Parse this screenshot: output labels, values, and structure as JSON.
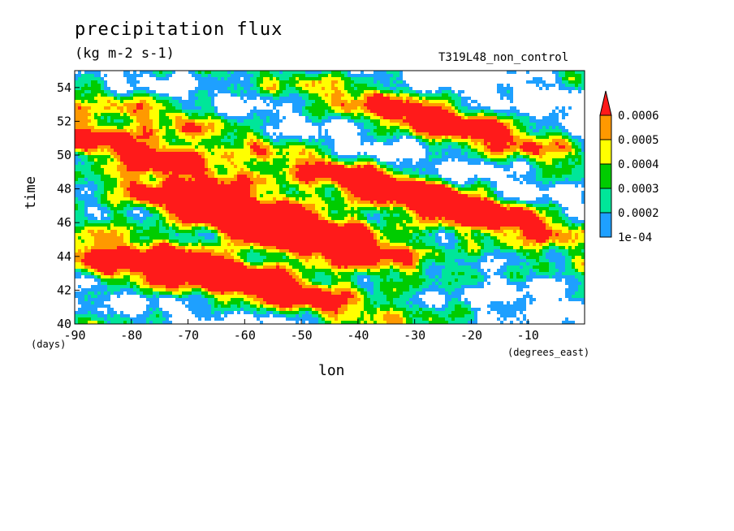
{
  "title": "precipitation flux",
  "units": "(kg m-2 s-1)",
  "run_label": "T319L48_non_control",
  "chart_data": {
    "type": "heatmap",
    "title": "precipitation flux",
    "xlabel": "lon",
    "ylabel": "time",
    "x_unit": "(degrees_east)",
    "y_unit": "(days)",
    "xlim": [
      -90,
      0
    ],
    "ylim": [
      40,
      55
    ],
    "x_ticks": [
      -90,
      -80,
      -70,
      -60,
      -50,
      -40,
      -30,
      -20,
      -10
    ],
    "x_tick_labels": [
      "-90",
      "-80",
      "-70",
      "-60",
      "-50",
      "-40",
      "-30",
      "-20",
      "-10"
    ],
    "y_ticks": [
      40,
      42,
      44,
      46,
      48,
      50,
      52,
      54
    ],
    "y_tick_labels": [
      "40",
      "42",
      "44",
      "46",
      "48",
      "50",
      "52",
      "54"
    ],
    "colorbar": {
      "levels": [
        "1e-04",
        "0.0002",
        "0.0003",
        "0.0004",
        "0.0005",
        "0.0006"
      ],
      "colors": [
        "#1ea0ff",
        "#00e699",
        "#00cc00",
        "#ffff00",
        "#ff9900",
        "#ff1a1a"
      ]
    },
    "pattern": "precipitation bands propagating westward (toward decreasing longitude) with time; strongest rainfall between about -75 and -45 degrees_east around days 41.5-47",
    "bands": [
      {
        "lon": -60,
        "time": 42.6,
        "slope": -0.09,
        "intensity": 1.0
      },
      {
        "lon": -55,
        "time": 45.3,
        "slope": -0.1,
        "intensity": 1.0
      },
      {
        "lon": -45,
        "time": 45.4,
        "slope": -0.1,
        "intensity": 0.9
      },
      {
        "lon": -35,
        "time": 48.2,
        "slope": -0.09,
        "intensity": 0.85
      },
      {
        "lon": -25,
        "time": 52.0,
        "slope": -0.08,
        "intensity": 0.8
      },
      {
        "lon": -15,
        "time": 46.5,
        "slope": -0.08,
        "intensity": 0.75
      },
      {
        "lon": -80,
        "time": 50.2,
        "slope": -0.09,
        "intensity": 0.75
      },
      {
        "lon": -75,
        "time": 52.5,
        "slope": -0.08,
        "intensity": 0.6
      },
      {
        "lon": -70,
        "time": 47.2,
        "slope": -0.08,
        "intensity": 0.7
      },
      {
        "lon": -85,
        "time": 43.5,
        "slope": -0.09,
        "intensity": 0.8
      }
    ]
  }
}
